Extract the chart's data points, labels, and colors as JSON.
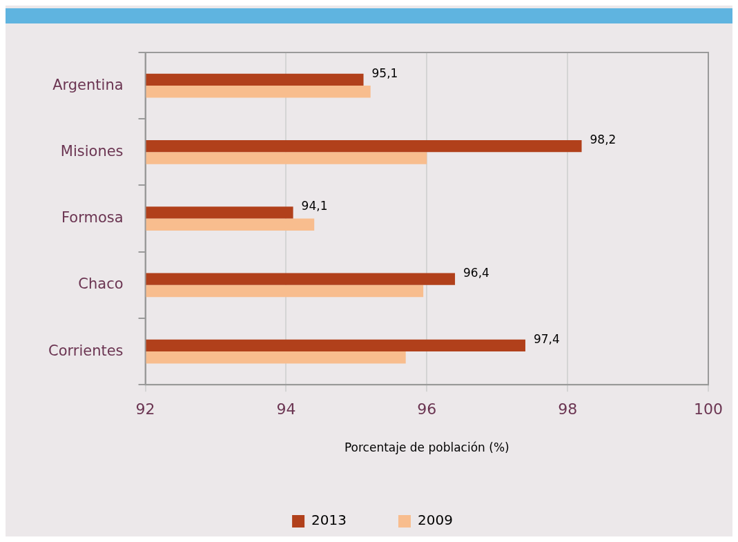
{
  "chart_data": {
    "type": "bar",
    "orientation": "horizontal",
    "xlabel": "Porcentaje de población (%)",
    "categories": [
      "Argentina",
      "Misiones",
      "Formosa",
      "Chaco",
      "Corrientes"
    ],
    "series": [
      {
        "name": "2013",
        "color": "#b1401b",
        "values": [
          95.1,
          98.2,
          94.1,
          96.4,
          97.4
        ],
        "value_labels": [
          "95,1",
          "98,2",
          "94,1",
          "96,4",
          "97,4"
        ]
      },
      {
        "name": "2009",
        "color": "#f8bd8e",
        "values": [
          95.2,
          96.0,
          94.4,
          95.95,
          95.7
        ]
      }
    ],
    "xlim": [
      92,
      100
    ],
    "xticks": [
      92,
      94,
      96,
      98,
      100
    ],
    "grid": "x",
    "legend": "bottom"
  }
}
